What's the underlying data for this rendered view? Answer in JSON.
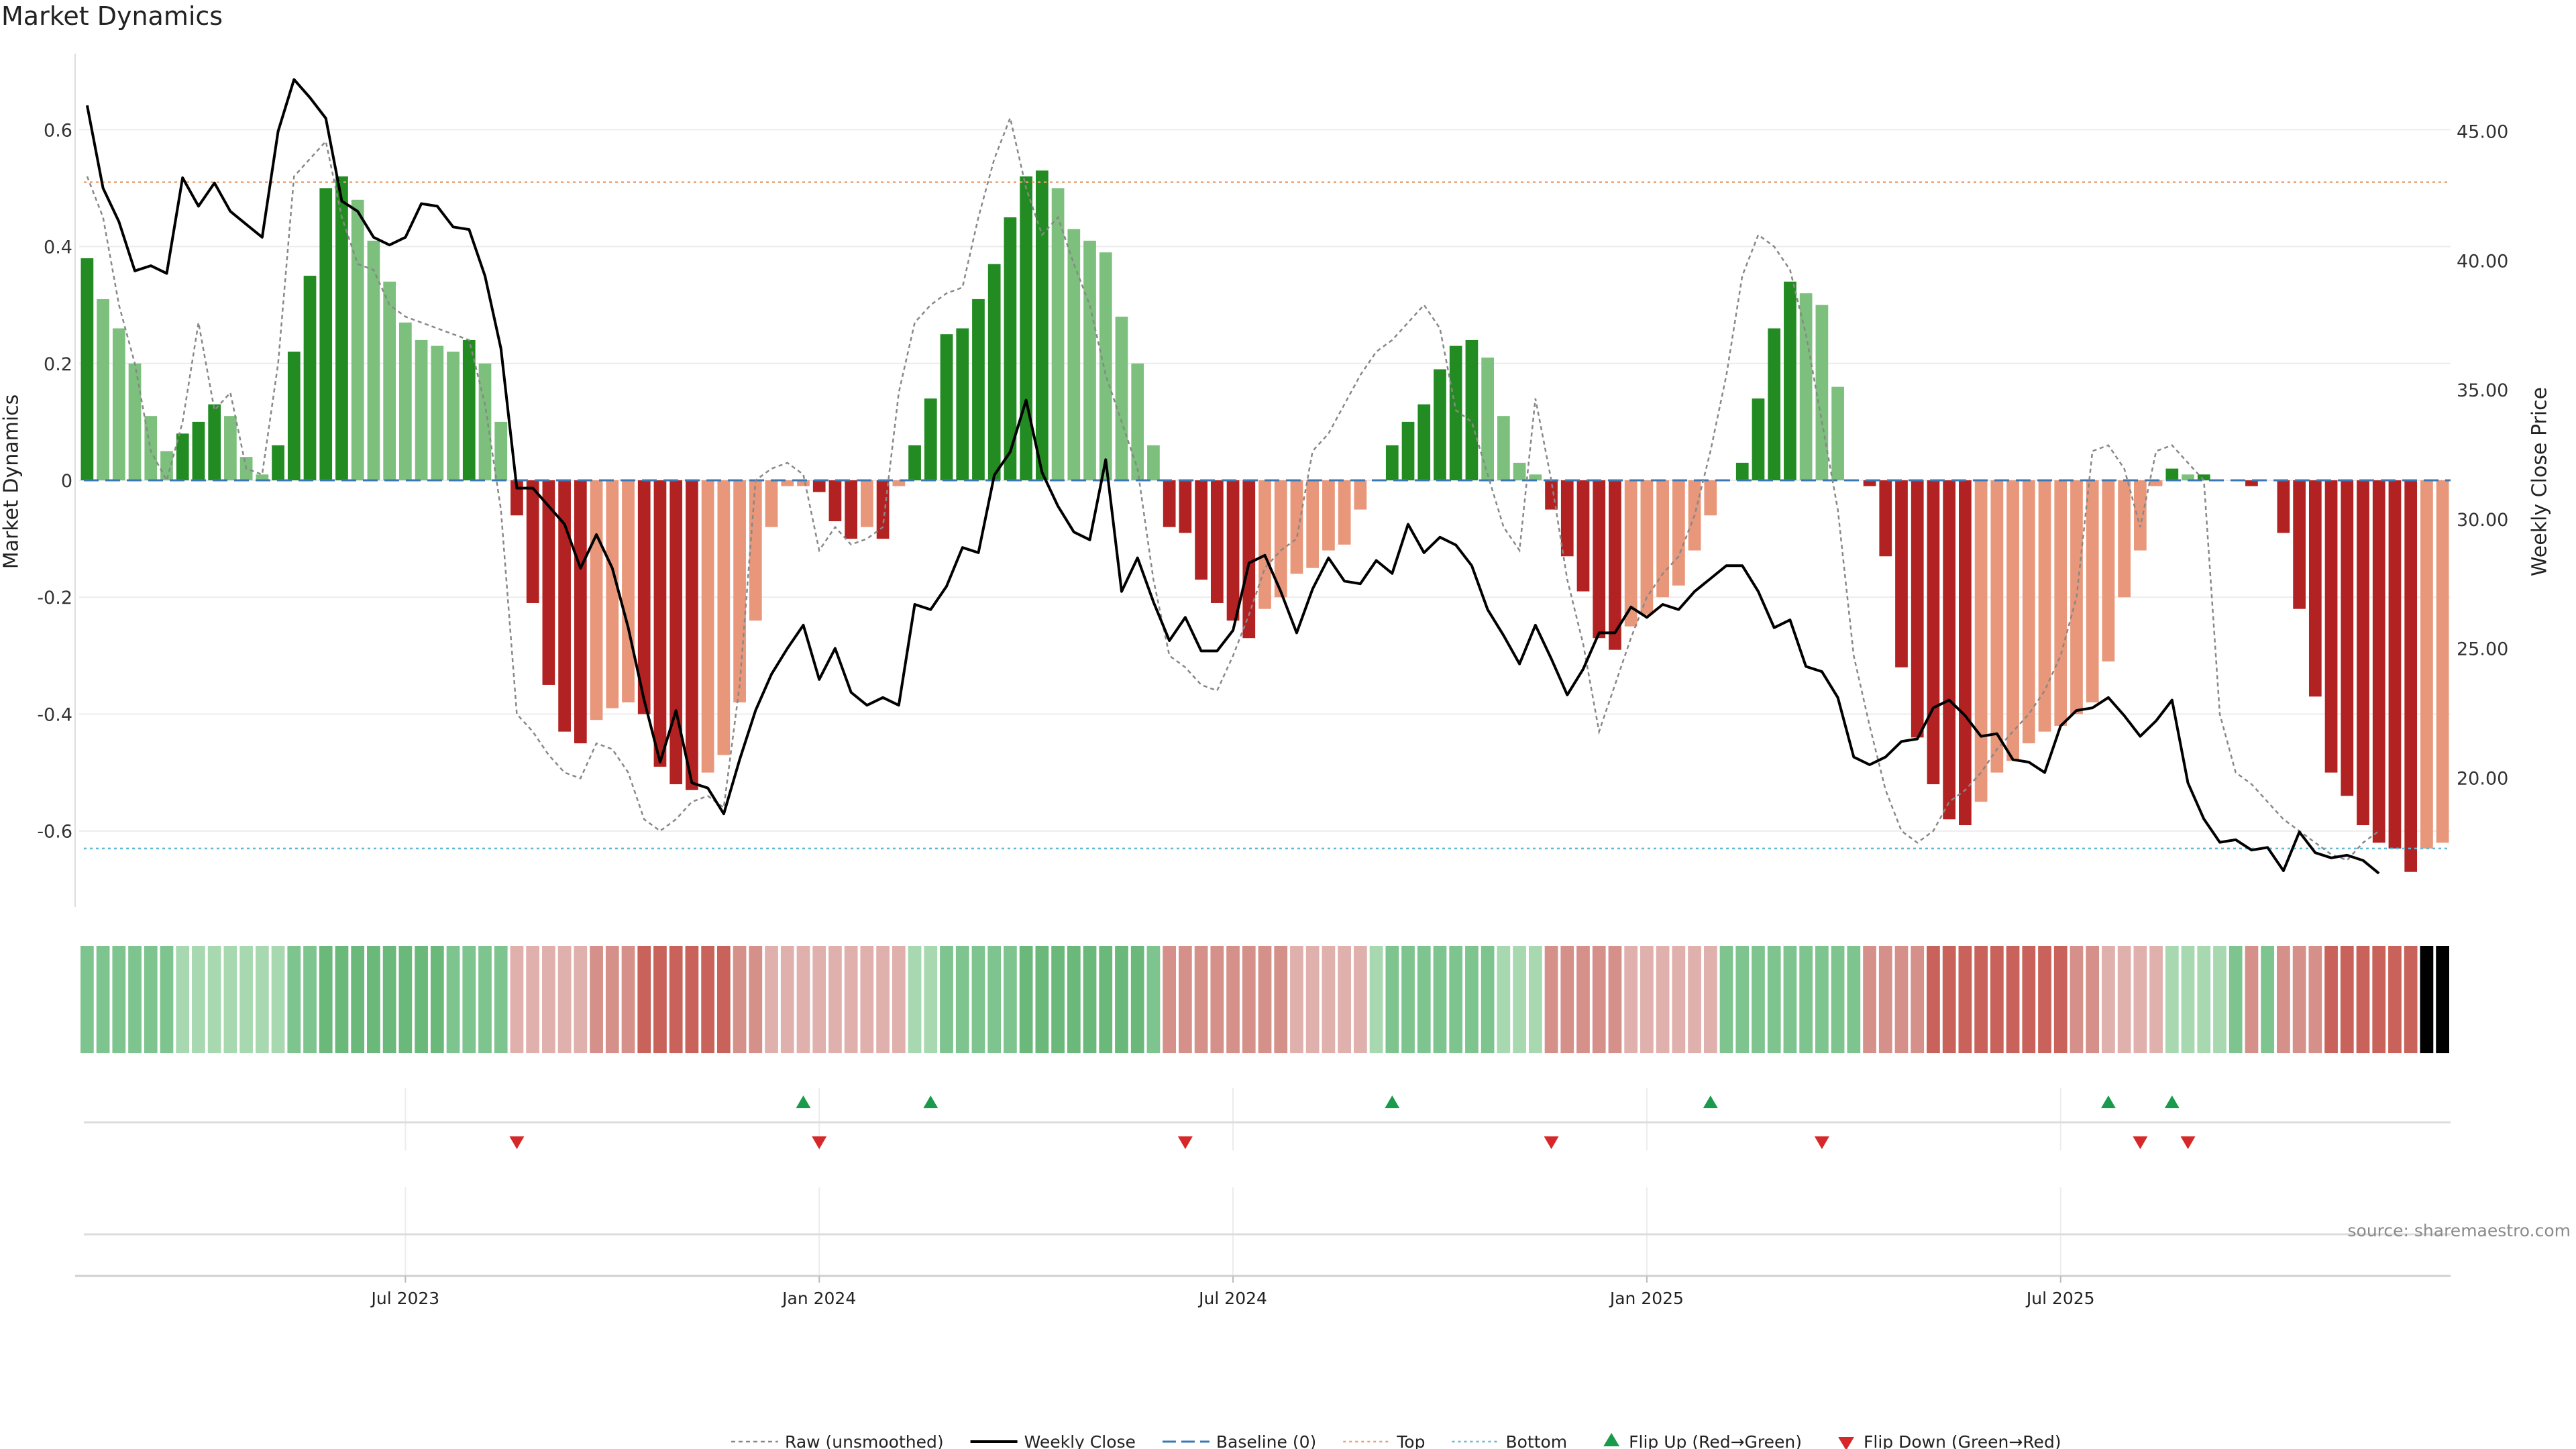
{
  "title": "Market Dynamics",
  "source": "source: sharemaestro.com",
  "colors": {
    "strong_green": "#228b22",
    "light_green": "#7dc07d",
    "strong_red": "#b22222",
    "light_red": "#e8977a",
    "price": "#000000",
    "raw": "#888888",
    "baseline": "#3a78b5",
    "top": "#e8a070",
    "bottom": "#5fb8d6",
    "flip_up": "#1a9a4a",
    "flip_down": "#d62828"
  },
  "chart_data": {
    "type": "bar",
    "title": "Market Dynamics",
    "ylabel": "Market Dynamics",
    "y2label": "Weekly Close Price",
    "ylim": [
      -0.73,
      0.73
    ],
    "y2lim": [
      15.0,
      48.0
    ],
    "y_ticks": [
      {
        "value": 0.6,
        "label": "0.6"
      },
      {
        "value": 0.4,
        "label": "0.4"
      },
      {
        "value": 0.2,
        "label": "0.2"
      },
      {
        "value": 0,
        "label": "0"
      },
      {
        "value": -0.2,
        "label": "-0.2"
      },
      {
        "value": -0.4,
        "label": "-0.4"
      },
      {
        "value": -0.6,
        "label": "-0.6"
      }
    ],
    "y2_ticks": [
      {
        "value": 45,
        "label": "45.00"
      },
      {
        "value": 40,
        "label": "40.00"
      },
      {
        "value": 35,
        "label": "35.00"
      },
      {
        "value": 30,
        "label": "30.00"
      },
      {
        "value": 25,
        "label": "25.00"
      },
      {
        "value": 20,
        "label": "20.00"
      }
    ],
    "x_ticks": [
      {
        "index": 20,
        "label": "Jul 2023"
      },
      {
        "index": 46,
        "label": "Jan 2024"
      },
      {
        "index": 72,
        "label": "Jul 2024"
      },
      {
        "index": 98,
        "label": "Jan 2025"
      },
      {
        "index": 124,
        "label": "Jul 2025"
      }
    ],
    "top_line": 0.51,
    "bottom_line": -0.63,
    "baseline": 0,
    "bar_values": [
      0.38,
      0.31,
      0.26,
      0.2,
      0.11,
      0.05,
      0.08,
      0.1,
      0.13,
      0.11,
      0.04,
      0.01,
      0.06,
      0.22,
      0.35,
      0.5,
      0.52,
      0.48,
      0.41,
      0.34,
      0.27,
      0.24,
      0.23,
      0.22,
      0.24,
      0.2,
      0.1,
      -0.06,
      -0.21,
      -0.35,
      -0.43,
      -0.45,
      -0.41,
      -0.39,
      -0.38,
      -0.4,
      -0.49,
      -0.52,
      -0.53,
      -0.5,
      -0.47,
      -0.38,
      -0.24,
      -0.08,
      -0.01,
      -0.01,
      -0.02,
      -0.07,
      -0.1,
      -0.08,
      -0.1,
      -0.01,
      0.06,
      0.14,
      0.25,
      0.26,
      0.31,
      0.37,
      0.45,
      0.52,
      0.53,
      0.5,
      0.43,
      0.41,
      0.39,
      0.28,
      0.2,
      0.06,
      -0.08,
      -0.09,
      -0.17,
      -0.21,
      -0.24,
      -0.27,
      -0.22,
      -0.2,
      -0.16,
      -0.15,
      -0.12,
      -0.11,
      -0.05,
      0,
      0.06,
      0.1,
      0.13,
      0.19,
      0.23,
      0.24,
      0.21,
      0.11,
      0.03,
      0.01,
      -0.05,
      -0.13,
      -0.19,
      -0.27,
      -0.29,
      -0.25,
      -0.23,
      -0.2,
      -0.18,
      -0.12,
      -0.06,
      0,
      0.03,
      0.14,
      0.26,
      0.34,
      0.32,
      0.3,
      0.16,
      0,
      -0.01,
      -0.13,
      -0.32,
      -0.44,
      -0.52,
      -0.58,
      -0.59,
      -0.55,
      -0.5,
      -0.48,
      -0.45,
      -0.43,
      -0.42,
      -0.4,
      -0.38,
      -0.31,
      -0.2,
      -0.12,
      -0.01,
      0.02,
      0.01,
      0.01,
      0,
      0,
      -0.01,
      0,
      -0.09,
      -0.22,
      -0.37,
      -0.5,
      -0.54,
      -0.59,
      -0.62,
      -0.63,
      -0.67,
      -0.63,
      -0.62
    ],
    "raw_values": [
      0.52,
      0.45,
      0.3,
      0.2,
      0.05,
      0,
      0.1,
      0.27,
      0.12,
      0.15,
      0.02,
      0.01,
      0.2,
      0.52,
      0.55,
      0.58,
      0.45,
      0.37,
      0.36,
      0.3,
      0.28,
      0.27,
      0.26,
      0.25,
      0.24,
      0.13,
      -0.05,
      -0.4,
      -0.43,
      -0.47,
      -0.5,
      -0.51,
      -0.45,
      -0.46,
      -0.5,
      -0.58,
      -0.6,
      -0.58,
      -0.55,
      -0.54,
      -0.56,
      -0.35,
      0,
      0.02,
      0.03,
      0.01,
      -0.12,
      -0.08,
      -0.11,
      -0.1,
      -0.08,
      0.15,
      0.27,
      0.3,
      0.32,
      0.33,
      0.45,
      0.55,
      0.62,
      0.5,
      0.42,
      0.45,
      0.37,
      0.3,
      0.18,
      0.1,
      0.02,
      -0.17,
      -0.3,
      -0.32,
      -0.35,
      -0.36,
      -0.3,
      -0.23,
      -0.15,
      -0.12,
      -0.1,
      0.05,
      0.08,
      0.13,
      0.18,
      0.22,
      0.24,
      0.27,
      0.3,
      0.26,
      0.12,
      0.1,
      0.01,
      -0.08,
      -0.12,
      0.14,
      0.0,
      -0.17,
      -0.28,
      -0.43,
      -0.35,
      -0.27,
      -0.2,
      -0.16,
      -0.13,
      -0.06,
      0.05,
      0.18,
      0.35,
      0.42,
      0.4,
      0.36,
      0.25,
      0.1,
      -0.05,
      -0.3,
      -0.42,
      -0.53,
      -0.6,
      -0.62,
      -0.6,
      -0.55,
      -0.53,
      -0.5,
      -0.46,
      -0.43,
      -0.4,
      -0.36,
      -0.3,
      -0.2,
      0.05,
      0.06,
      0.02,
      -0.08,
      0.05,
      0.06,
      0.03,
      0.0,
      -0.4,
      -0.5,
      -0.52,
      -0.55,
      -0.58,
      -0.6,
      -0.62,
      -0.64,
      -0.65,
      -0.62,
      -0.6
    ],
    "price_values": [
      46.0,
      42.8,
      41.5,
      39.6,
      39.8,
      39.5,
      43.2,
      42.1,
      43.0,
      41.9,
      41.4,
      40.9,
      45.0,
      47.0,
      46.3,
      45.5,
      42.3,
      41.9,
      40.9,
      40.6,
      40.9,
      42.2,
      42.1,
      41.3,
      41.2,
      39.4,
      36.6,
      31.2,
      31.2,
      30.5,
      29.8,
      28.1,
      29.4,
      28.1,
      25.8,
      23.0,
      20.6,
      22.6,
      19.8,
      19.6,
      18.6,
      20.7,
      22.6,
      24.0,
      25.0,
      25.9,
      23.8,
      25.0,
      23.3,
      22.8,
      23.1,
      22.8,
      26.7,
      26.5,
      27.4,
      28.9,
      28.7,
      31.7,
      32.6,
      34.6,
      31.8,
      30.5,
      29.5,
      29.2,
      32.3,
      27.2,
      28.5,
      26.8,
      25.3,
      26.2,
      24.9,
      24.9,
      25.7,
      28.3,
      28.6,
      27.2,
      25.6,
      27.3,
      28.5,
      27.6,
      27.5,
      28.4,
      27.9,
      29.8,
      28.7,
      29.3,
      29.0,
      28.2,
      26.5,
      25.5,
      24.4,
      25.9,
      24.6,
      23.2,
      24.2,
      25.6,
      25.6,
      26.6,
      26.2,
      26.7,
      26.5,
      27.2,
      27.7,
      28.2,
      28.2,
      27.2,
      25.8,
      26.1,
      24.3,
      24.1,
      23.1,
      20.8,
      20.5,
      20.8,
      21.4,
      21.5,
      22.7,
      23.0,
      22.4,
      21.6,
      21.7,
      20.7,
      20.6,
      20.2,
      22.0,
      22.6,
      22.7,
      23.1,
      22.4,
      21.6,
      22.2,
      23.0,
      19.8,
      18.4,
      17.5,
      17.6,
      17.2,
      17.3,
      16.4,
      17.9,
      17.1,
      16.9,
      17.0,
      16.8,
      16.3
    ],
    "regime_strength": [
      2,
      2,
      2,
      2,
      2,
      2,
      1,
      1,
      1,
      1,
      1,
      1,
      1,
      2,
      2,
      3,
      3,
      3,
      3,
      3,
      3,
      3,
      3,
      2,
      2,
      2,
      2,
      1,
      1,
      1,
      1,
      1,
      2,
      2,
      2,
      3,
      3,
      3,
      3,
      3,
      3,
      2,
      2,
      1,
      1,
      1,
      1,
      1,
      1,
      1,
      1,
      1,
      1,
      1,
      2,
      2,
      2,
      2,
      2,
      3,
      3,
      3,
      3,
      3,
      3,
      3,
      3,
      2,
      2,
      2,
      2,
      2,
      2,
      2,
      2,
      2,
      1,
      1,
      1,
      1,
      1,
      1,
      2,
      2,
      2,
      2,
      2,
      2,
      2,
      1,
      1,
      1,
      2,
      2,
      2,
      2,
      2,
      1,
      1,
      1,
      1,
      1,
      1,
      2,
      2,
      2,
      2,
      2,
      2,
      2,
      2,
      2,
      2,
      2,
      2,
      2,
      3,
      3,
      3,
      3,
      3,
      3,
      3,
      3,
      3,
      2,
      2,
      1,
      1,
      1,
      1,
      1,
      1,
      1,
      1,
      2,
      2,
      2,
      2,
      2,
      2,
      3,
      3,
      3,
      3,
      3,
      3
    ],
    "flip_up_indices": [
      45,
      53,
      82,
      102,
      127,
      131
    ],
    "flip_down_indices": [
      27,
      46,
      69,
      92,
      109,
      129,
      132
    ],
    "legend": [
      {
        "key": "raw",
        "label": "Raw (unsmoothed)"
      },
      {
        "key": "price",
        "label": "Weekly Close"
      },
      {
        "key": "baseline",
        "label": "Baseline (0)"
      },
      {
        "key": "top",
        "label": "Top"
      },
      {
        "key": "bottom",
        "label": "Bottom"
      },
      {
        "key": "flip_up",
        "label": "Flip Up (Red→Green)"
      },
      {
        "key": "flip_down",
        "label": "Flip Down (Green→Red)"
      }
    ]
  }
}
